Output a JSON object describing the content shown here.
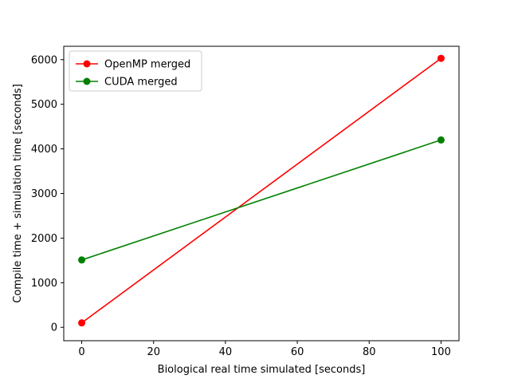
{
  "chart_data": {
    "type": "line",
    "title": "",
    "xlabel": "Biological real time simulated [seconds]",
    "ylabel": "Compile time + simulation time [seconds]",
    "xlim": [
      -5,
      105
    ],
    "ylim": [
      -300,
      6300
    ],
    "xticks": [
      0,
      20,
      40,
      60,
      80,
      100
    ],
    "yticks": [
      0,
      1000,
      2000,
      3000,
      4000,
      5000,
      6000
    ],
    "grid": false,
    "legend": "top-left",
    "series": [
      {
        "name": "OpenMP merged",
        "color": "#ff0000",
        "marker": "circle",
        "x": [
          0,
          100
        ],
        "y": [
          100,
          6030
        ]
      },
      {
        "name": "CUDA merged",
        "color": "#008000",
        "marker": "circle",
        "x": [
          0,
          100
        ],
        "y": [
          1510,
          4200
        ]
      }
    ]
  }
}
